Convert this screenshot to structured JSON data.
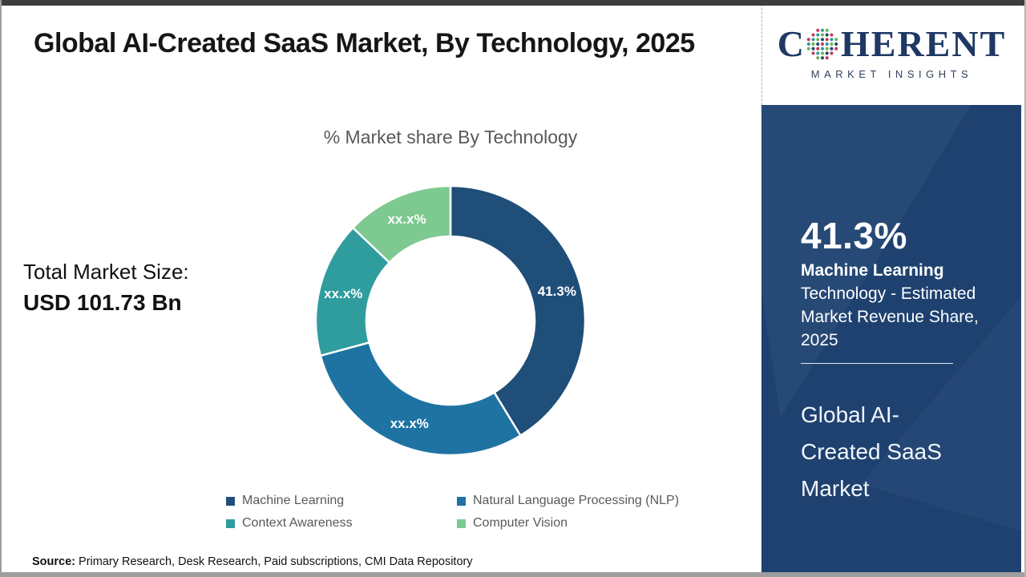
{
  "header": {
    "title": "Global AI-Created SaaS Market, By Technology, 2025"
  },
  "logo": {
    "brand_start": "C",
    "brand_end": "HERENT",
    "tagline": "MARKET INSIGHTS",
    "globe_dot_colors": [
      "#c13a5e",
      "#2e9b9b",
      "#6fb457",
      "#27486e"
    ],
    "text_color": "#1f3864"
  },
  "left_panel": {
    "total_label": "Total Market Size:",
    "total_value": "USD 101.73 Bn"
  },
  "chart_data": {
    "type": "pie",
    "donut": true,
    "title": "% Market share By Technology",
    "categories": [
      "Machine Learning",
      "Natural Language Processing (NLP)",
      "Context Awareness",
      "Computer Vision"
    ],
    "values": [
      41.3,
      29.5,
      16.3,
      12.9
    ],
    "value_labels": [
      "41.3%",
      "xx.x%",
      "xx.x%",
      "xx.x%"
    ],
    "colors": [
      "#1f4e79",
      "#1e73a2",
      "#2f9c9e",
      "#7dc98f"
    ],
    "legend_position": "bottom",
    "start_angle_deg": 0,
    "direction": "clockwise"
  },
  "sidebar": {
    "stat_value": "41.3%",
    "stat_label_bold": "Machine Learning",
    "stat_label_rest": "Technology - Estimated Market Revenue Share, 2025",
    "market_name": "Global AI-Created SaaS Market",
    "bg_color": "#1e4170"
  },
  "footer": {
    "source_label": "Source:",
    "source_text": "Primary Research, Desk Research, Paid subscriptions, CMI Data Repository"
  }
}
